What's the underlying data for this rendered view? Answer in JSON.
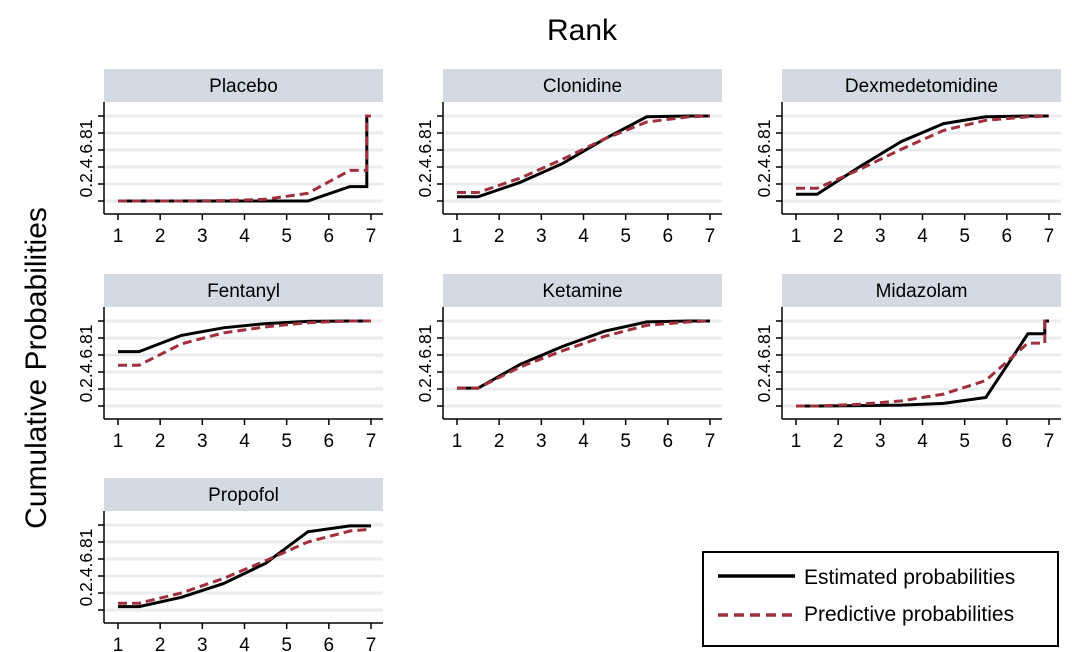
{
  "chart_data": {
    "type": "line",
    "title": "Rank",
    "ylabel": "Cumulative Probabilities",
    "x_ticks": [
      "1",
      "2",
      "3",
      "4",
      "5",
      "6",
      "7"
    ],
    "y_ticks": [
      "0",
      ".2",
      ".4",
      ".6",
      ".8",
      "1"
    ],
    "ylim": [
      0,
      1
    ],
    "xlim": [
      1,
      7
    ],
    "grid": true,
    "legend_position": "bottom-right",
    "colors": {
      "estimated": "#000000",
      "predictive": "#a0303e",
      "strip": "#d3dae3",
      "grid": "#e8ecef"
    },
    "legend": [
      {
        "key": "estimated",
        "label": "Estimated probabilities",
        "style": "solid"
      },
      {
        "key": "predictive",
        "label": "Predictive probabilities",
        "style": "dashed"
      }
    ],
    "panels": [
      {
        "name": "Placebo",
        "estimated": [
          [
            1,
            0
          ],
          [
            1.5,
            0
          ],
          [
            2.5,
            0
          ],
          [
            3.5,
            0
          ],
          [
            4.5,
            0
          ],
          [
            5.5,
            0
          ],
          [
            6.5,
            0.17
          ],
          [
            6.9,
            0.17
          ],
          [
            6.9,
            1
          ],
          [
            7,
            1
          ]
        ],
        "predictive": [
          [
            1,
            0
          ],
          [
            1.5,
            0
          ],
          [
            2.5,
            0
          ],
          [
            3.5,
            0.005
          ],
          [
            4.5,
            0.02
          ],
          [
            5.5,
            0.09
          ],
          [
            6.5,
            0.36
          ],
          [
            6.9,
            0.36
          ],
          [
            6.9,
            1
          ],
          [
            7,
            1
          ]
        ]
      },
      {
        "name": "Clonidine",
        "estimated": [
          [
            1,
            0.05
          ],
          [
            1.5,
            0.05
          ],
          [
            2.5,
            0.22
          ],
          [
            3.5,
            0.44
          ],
          [
            4.5,
            0.73
          ],
          [
            5.5,
            0.99
          ],
          [
            6.5,
            1
          ],
          [
            7,
            1
          ]
        ],
        "predictive": [
          [
            1,
            0.1
          ],
          [
            1.5,
            0.1
          ],
          [
            2.5,
            0.27
          ],
          [
            3.5,
            0.49
          ],
          [
            4.5,
            0.73
          ],
          [
            5.5,
            0.93
          ],
          [
            6.5,
            0.99
          ],
          [
            7,
            1
          ]
        ]
      },
      {
        "name": "Dexmedetomidine",
        "estimated": [
          [
            1,
            0.08
          ],
          [
            1.5,
            0.08
          ],
          [
            2.5,
            0.4
          ],
          [
            3.5,
            0.7
          ],
          [
            4.5,
            0.91
          ],
          [
            5.5,
            0.99
          ],
          [
            6.5,
            1
          ],
          [
            7,
            1
          ]
        ],
        "predictive": [
          [
            1,
            0.15
          ],
          [
            1.5,
            0.15
          ],
          [
            2.5,
            0.37
          ],
          [
            3.5,
            0.61
          ],
          [
            4.5,
            0.83
          ],
          [
            5.5,
            0.95
          ],
          [
            6.5,
            0.99
          ],
          [
            7,
            1
          ]
        ]
      },
      {
        "name": "Fentanyl",
        "estimated": [
          [
            1,
            0.64
          ],
          [
            1.5,
            0.64
          ],
          [
            2.5,
            0.83
          ],
          [
            3.5,
            0.92
          ],
          [
            4.5,
            0.97
          ],
          [
            5.5,
            0.995
          ],
          [
            6.5,
            1
          ],
          [
            7,
            1
          ]
        ],
        "predictive": [
          [
            1,
            0.48
          ],
          [
            1.5,
            0.48
          ],
          [
            2.5,
            0.73
          ],
          [
            3.5,
            0.86
          ],
          [
            4.5,
            0.93
          ],
          [
            5.5,
            0.98
          ],
          [
            6.5,
            1
          ],
          [
            7,
            1
          ]
        ]
      },
      {
        "name": "Ketamine",
        "estimated": [
          [
            1,
            0.21
          ],
          [
            1.5,
            0.21
          ],
          [
            2.5,
            0.49
          ],
          [
            3.5,
            0.7
          ],
          [
            4.5,
            0.88
          ],
          [
            5.5,
            0.99
          ],
          [
            6.5,
            1
          ],
          [
            7,
            1
          ]
        ],
        "predictive": [
          [
            1,
            0.21
          ],
          [
            1.5,
            0.21
          ],
          [
            2.5,
            0.46
          ],
          [
            3.5,
            0.65
          ],
          [
            4.5,
            0.82
          ],
          [
            5.5,
            0.95
          ],
          [
            6.5,
            0.99
          ],
          [
            7,
            1
          ]
        ]
      },
      {
        "name": "Midazolam",
        "estimated": [
          [
            1,
            0
          ],
          [
            1.5,
            0
          ],
          [
            2.5,
            0.005
          ],
          [
            3.5,
            0.01
          ],
          [
            4.5,
            0.03
          ],
          [
            5.5,
            0.1
          ],
          [
            6.5,
            0.85
          ],
          [
            6.9,
            0.85
          ],
          [
            6.9,
            1
          ],
          [
            7,
            1
          ]
        ],
        "predictive": [
          [
            1,
            0
          ],
          [
            1.5,
            0
          ],
          [
            2.5,
            0.02
          ],
          [
            3.5,
            0.06
          ],
          [
            4.5,
            0.14
          ],
          [
            5.5,
            0.3
          ],
          [
            6.5,
            0.74
          ],
          [
            6.9,
            0.74
          ],
          [
            6.9,
            1
          ],
          [
            7,
            1
          ]
        ]
      },
      {
        "name": "Propofol",
        "estimated": [
          [
            1,
            0.04
          ],
          [
            1.5,
            0.04
          ],
          [
            2.5,
            0.15
          ],
          [
            3.5,
            0.31
          ],
          [
            4.5,
            0.55
          ],
          [
            5.5,
            0.92
          ],
          [
            6.5,
            0.99
          ],
          [
            7,
            0.99
          ]
        ],
        "predictive": [
          [
            1,
            0.08
          ],
          [
            1.5,
            0.08
          ],
          [
            2.5,
            0.2
          ],
          [
            3.5,
            0.37
          ],
          [
            4.5,
            0.58
          ],
          [
            5.5,
            0.8
          ],
          [
            6.5,
            0.93
          ],
          [
            7,
            0.95
          ]
        ]
      }
    ]
  }
}
